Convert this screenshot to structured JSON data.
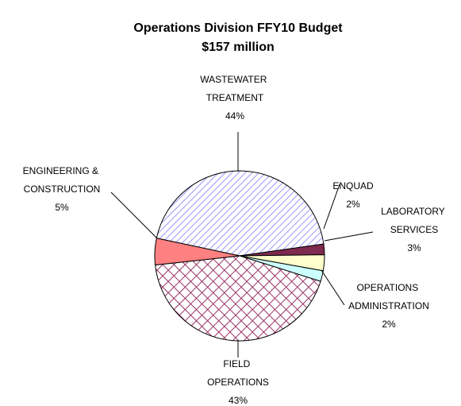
{
  "chart_data": {
    "type": "pie",
    "title": "Operations Division FFY10 Budget",
    "subtitle": "$157 million",
    "categories": [
      "WASTEWATER TREATMENT",
      "ENQUAD",
      "LABORATORY SERVICES",
      "OPERATIONS ADMINISTRATION",
      "FIELD OPERATIONS",
      "ENGINEERING & CONSTRUCTION"
    ],
    "values": [
      44,
      2,
      3,
      2,
      43,
      5
    ],
    "value_labels": [
      "44%",
      "2%",
      "3%",
      "2%",
      "43%",
      "5%"
    ],
    "colors": [
      "#9999ff",
      "#7f2a4f",
      "#ffffcc",
      "#ccffff",
      "#993366",
      "#ff8080"
    ]
  }
}
